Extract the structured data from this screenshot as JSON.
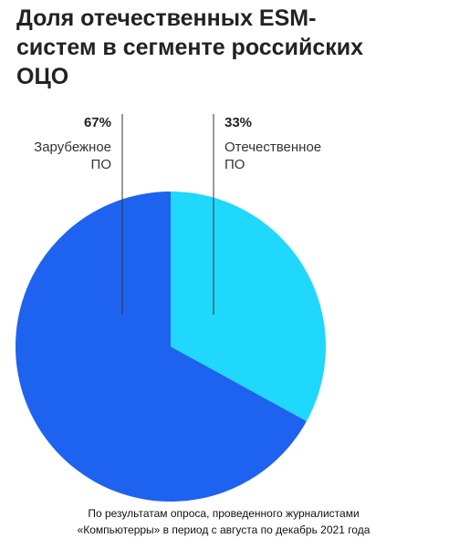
{
  "chart_data": {
    "type": "pie",
    "title": "Доля отечественных ESM-систем в сегменте российских ОЦО",
    "categories": [
      "Отечественное ПО",
      "Зарубежное ПО"
    ],
    "values": [
      33,
      67
    ],
    "value_labels": [
      "33%",
      "67%"
    ],
    "colors": [
      "#1fd8fc",
      "#1e63f0"
    ],
    "note": "По результатам опроса, проведенного журналистами «Компьютерры» в период с августа по декабрь 2021 года"
  }
}
